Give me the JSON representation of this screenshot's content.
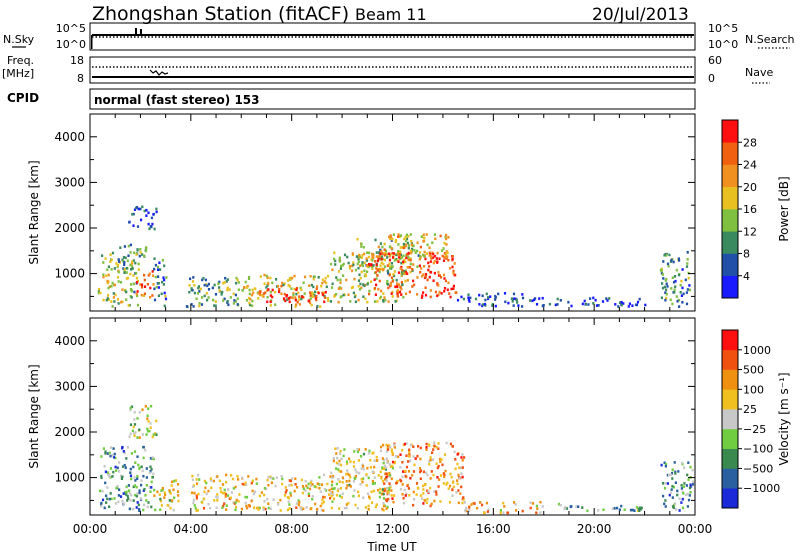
{
  "header": {
    "title": "Zhongshan Station (fitACF)",
    "beam": "Beam 11",
    "date": "20/Jul/2013"
  },
  "strip_top": {
    "left_label": "N.Sky",
    "left_ticks": [
      "10^5",
      "10^0"
    ],
    "right_label": "N.Search",
    "right_ticks": [
      "10^5",
      "10^0"
    ]
  },
  "strip_mid": {
    "left_label_1": "Freq.",
    "left_label_2": "[MHz]",
    "left_ticks": [
      "18",
      "8"
    ],
    "right_label": "Nave",
    "right_ticks": [
      "60",
      "0"
    ]
  },
  "cpid": {
    "label": "CPID",
    "text": "normal (fast stereo) 153"
  },
  "chart_data": [
    {
      "type": "heatmap",
      "quantity": "Power",
      "ylabel": "Slant Range [km]",
      "xlabel": "Time UT",
      "xlim": [
        0,
        24
      ],
      "ylim": [
        180,
        4500
      ],
      "y_ticks": [
        1000,
        2000,
        3000,
        4000
      ],
      "x_ticks": [
        "00:00",
        "04:00",
        "08:00",
        "12:00",
        "16:00",
        "20:00",
        "00:00"
      ],
      "colorbar_label": "Power [dB]",
      "colorbar_ticks": [
        "4",
        "8",
        "12",
        "16",
        "20",
        "24",
        "28"
      ],
      "colorbar_colors": [
        "#1a1aff",
        "#2050a8",
        "#3a8a60",
        "#80c040",
        "#e8c020",
        "#f09020",
        "#f06010",
        "#ff1010"
      ],
      "regions": [
        {
          "t0": 0.3,
          "t1": 1.9,
          "r0": 300,
          "r1": 1500,
          "level": 0.45
        },
        {
          "t0": 1.0,
          "t1": 2.2,
          "r0": 1200,
          "r1": 1700,
          "level": 0.35
        },
        {
          "t0": 1.8,
          "t1": 2.5,
          "r0": 500,
          "r1": 1100,
          "level": 0.8
        },
        {
          "t0": 2.5,
          "t1": 3.0,
          "r0": 300,
          "r1": 1400,
          "level": 0.3
        },
        {
          "t0": 1.5,
          "t1": 2.6,
          "r0": 2000,
          "r1": 2500,
          "level": 0.15
        },
        {
          "t0": 3.8,
          "t1": 6.0,
          "r0": 300,
          "r1": 1000,
          "level": 0.35
        },
        {
          "t0": 6.0,
          "t1": 9.5,
          "r0": 300,
          "r1": 1000,
          "level": 0.55
        },
        {
          "t0": 6.6,
          "t1": 9.4,
          "r0": 400,
          "r1": 700,
          "level": 0.95
        },
        {
          "t0": 9.5,
          "t1": 12.5,
          "r0": 400,
          "r1": 1500,
          "level": 0.5
        },
        {
          "t0": 10.5,
          "t1": 13.0,
          "r0": 1000,
          "r1": 1800,
          "level": 0.45
        },
        {
          "t0": 11.0,
          "t1": 14.5,
          "r0": 500,
          "r1": 1500,
          "level": 0.85
        },
        {
          "t0": 11.5,
          "t1": 14.2,
          "r0": 1400,
          "r1": 1900,
          "level": 0.6
        },
        {
          "t0": 14.5,
          "t1": 17.5,
          "r0": 300,
          "r1": 600,
          "level": 0.15
        },
        {
          "t0": 17.5,
          "t1": 22.0,
          "r0": 300,
          "r1": 500,
          "level": 0.08
        },
        {
          "t0": 22.6,
          "t1": 23.8,
          "r0": 300,
          "r1": 1500,
          "level": 0.3
        }
      ]
    },
    {
      "type": "heatmap",
      "quantity": "Velocity",
      "ylabel": "Slant Range [km]",
      "xlabel": "Time UT",
      "xlim": [
        0,
        24
      ],
      "ylim": [
        180,
        4500
      ],
      "y_ticks": [
        1000,
        2000,
        3000,
        4000
      ],
      "x_ticks": [
        "00:00",
        "04:00",
        "08:00",
        "12:00",
        "16:00",
        "20:00",
        "00:00"
      ],
      "colorbar_label": "Velocity [m s⁻¹]",
      "colorbar_ticks": [
        "1000",
        "500",
        "100",
        "25",
        "−25",
        "−100",
        "−500",
        "−1000"
      ],
      "colorbar_colors": [
        "#1a2ad8",
        "#2a60a0",
        "#3a8a50",
        "#70cc40",
        "#c8c8c8",
        "#f0c020",
        "#f09010",
        "#f05010",
        "#ff1010"
      ],
      "regions": [
        {
          "t0": 0.3,
          "t1": 2.5,
          "r0": 300,
          "r1": 1700,
          "level": 0.3
        },
        {
          "t0": 1.5,
          "t1": 2.6,
          "r0": 1900,
          "r1": 2600,
          "level": 0.5
        },
        {
          "t0": 2.5,
          "t1": 3.5,
          "r0": 300,
          "r1": 1000,
          "level": 0.55
        },
        {
          "t0": 4.0,
          "t1": 9.5,
          "r0": 300,
          "r1": 1100,
          "level": 0.6
        },
        {
          "t0": 9.5,
          "t1": 12.0,
          "r0": 300,
          "r1": 1700,
          "level": 0.55
        },
        {
          "t0": 11.5,
          "t1": 14.8,
          "r0": 400,
          "r1": 1800,
          "level": 0.7
        },
        {
          "t0": 14.8,
          "t1": 18.0,
          "r0": 250,
          "r1": 500,
          "level": 0.65
        },
        {
          "t0": 18.0,
          "t1": 22.0,
          "r0": 300,
          "r1": 450,
          "level": 0.35
        },
        {
          "t0": 22.6,
          "t1": 23.9,
          "r0": 300,
          "r1": 1400,
          "level": 0.3
        }
      ]
    }
  ]
}
